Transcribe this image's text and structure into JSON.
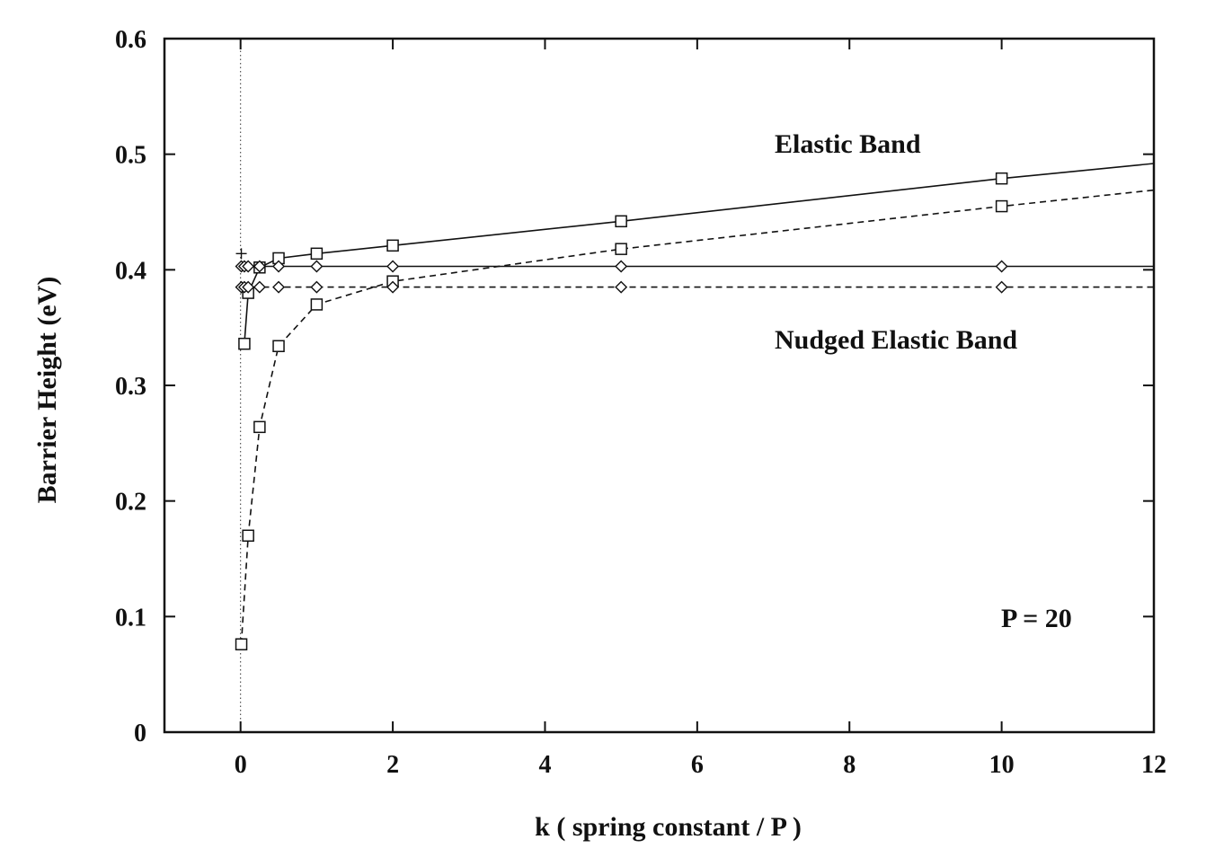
{
  "chart_data": {
    "type": "line",
    "xlabel": "k ( spring constant / P )",
    "ylabel": "Barrier Height (eV)",
    "xlim": [
      -1,
      12
    ],
    "ylim": [
      0,
      0.6
    ],
    "x_ticks": [
      0,
      2,
      4,
      6,
      8,
      10,
      12
    ],
    "y_ticks": [
      0,
      0.1,
      0.2,
      0.3,
      0.4,
      0.5,
      0.6
    ],
    "x_tick_labels": [
      "0",
      "2",
      "4",
      "6",
      "8",
      "10",
      "12"
    ],
    "y_tick_labels": [
      "0",
      "0.1",
      "0.2",
      "0.3",
      "0.4",
      "0.5",
      "0.6"
    ],
    "grid": false,
    "reference_line": {
      "x": 0,
      "style": "dotted"
    },
    "annotations": {
      "elastic": "Elastic Band",
      "nudged": "Nudged Elastic Band",
      "p": "P = 20"
    },
    "series": [
      {
        "group": "Elastic Band",
        "line": "solid",
        "marker": "square",
        "x": [
          0.05,
          0.1,
          0.25,
          0.5,
          1,
          2,
          5,
          10
        ],
        "y": [
          0.336,
          0.38,
          0.402,
          0.41,
          0.414,
          0.421,
          0.442,
          0.479
        ],
        "extends_to": {
          "x": 12,
          "y": 0.492
        }
      },
      {
        "group": "Elastic Band",
        "line": "dashed",
        "marker": "square",
        "x": [
          0.01,
          0.1,
          0.25,
          0.5,
          1,
          2,
          5,
          10
        ],
        "y": [
          0.076,
          0.17,
          0.264,
          0.334,
          0.37,
          0.39,
          0.418,
          0.455
        ],
        "extends_to": {
          "x": 12,
          "y": 0.469
        }
      },
      {
        "group": "Nudged Elastic Band",
        "line": "solid",
        "marker": "diamond",
        "x": [
          0.01,
          0.05,
          0.1,
          0.25,
          0.5,
          1,
          2,
          5,
          10
        ],
        "y": [
          0.403,
          0.403,
          0.403,
          0.403,
          0.403,
          0.403,
          0.403,
          0.403,
          0.403
        ],
        "extends_to": {
          "x": 12,
          "y": 0.403
        }
      },
      {
        "group": "Nudged Elastic Band",
        "line": "dashed",
        "marker": "diamond",
        "x": [
          0.01,
          0.05,
          0.1,
          0.25,
          0.5,
          1,
          2,
          5,
          10
        ],
        "y": [
          0.385,
          0.385,
          0.385,
          0.385,
          0.385,
          0.385,
          0.385,
          0.385,
          0.385
        ],
        "extends_to": {
          "x": 12,
          "y": 0.385
        }
      }
    ],
    "extra_marks": [
      {
        "marker": "plus",
        "x": 0.01,
        "y": 0.414
      }
    ]
  }
}
